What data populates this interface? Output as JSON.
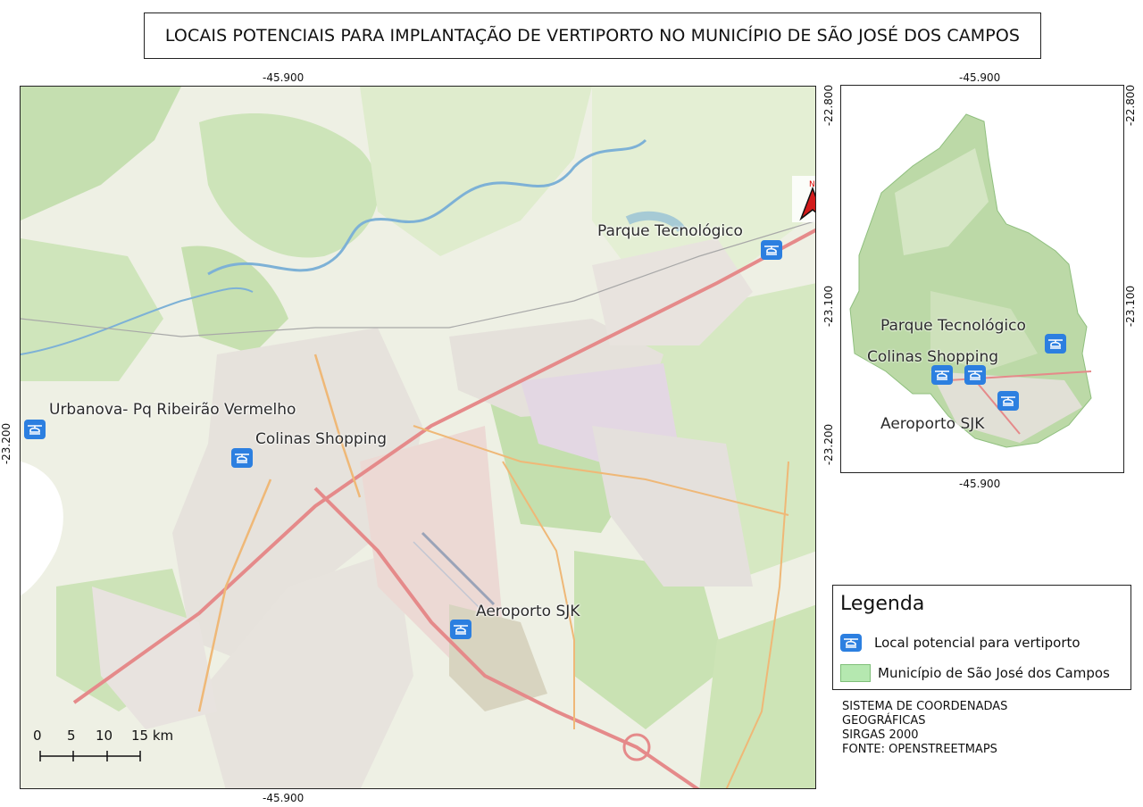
{
  "title": "LOCAIS POTENCIAIS PARA IMPLANTAÇÃO DE VERTIPORTO NO MUNICÍPIO DE SÃO JOSÉ DOS CAMPOS",
  "main_map": {
    "coords": {
      "top_lon": "-45.900",
      "bottom_lon": "-45.900",
      "left_lat": "-23.200"
    },
    "labels": {
      "parque": "Parque Tecnológico",
      "urbanova": "Urbanova- Pq Ribeirão Vermelho",
      "colinas": "Colinas Shopping",
      "aeroporto": "Aeroporto SJK"
    },
    "north_letter": "N",
    "scale": {
      "ticks": [
        "0",
        "5",
        "10",
        "15 km"
      ]
    }
  },
  "inset_map": {
    "coords": {
      "top_lon": "-45.900",
      "bottom_lon": "-45.900",
      "left_top_lat": "-22.800",
      "left_mid_lat": "-23.100",
      "left_bottom_lat": "-23.200",
      "right_top_lat": "-22.800",
      "right_mid_lat": "-23.100"
    },
    "labels": {
      "parque": "Parque Tecnológico",
      "colinas": "Colinas Shopping",
      "aeroporto": "Aeroporto SJK"
    }
  },
  "legend": {
    "title": "Legenda",
    "items": [
      {
        "label": "Local potencial para vertiporto",
        "icon": "helicopter-icon",
        "color": "#2c7fe0"
      },
      {
        "label": "Município de São José dos Campos",
        "color": "#b5e8b0"
      }
    ]
  },
  "crs": {
    "lines": [
      "SISTEMA DE COORDENADAS",
      "GEOGRÁFICAS",
      "SIRGAS 2000",
      "FONTE: OPENSTREETMAPS"
    ]
  },
  "colors": {
    "heli_marker": "#2c7fe0",
    "municipality": "#b5e8b0",
    "road_major": "#e58a8a",
    "river": "#7db1d6"
  }
}
